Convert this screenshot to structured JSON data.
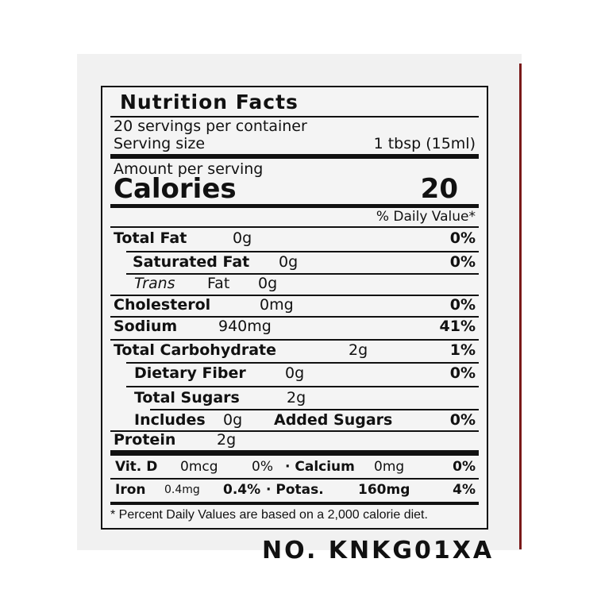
{
  "label": {
    "title": "Nutrition Facts",
    "servings": "20 servings per container",
    "serving_size_label": "Serving size",
    "serving_size_value": "1 tbsp (15ml)",
    "amount_per_serving": "Amount per serving",
    "calories_label": "Calories",
    "calories_value": "20",
    "daily_value_header": "% Daily Value*",
    "nutrients": [
      {
        "name": "Total Fat",
        "amount": "0g",
        "dv": "0%"
      },
      {
        "name": "Saturated Fat",
        "amount": "0g",
        "dv": "0%"
      },
      {
        "name_italic": "Trans",
        "name": "Fat",
        "amount": "0g"
      },
      {
        "name": "Cholesterol",
        "amount": "0mg",
        "dv": "0%"
      },
      {
        "name": "Sodium",
        "amount": "940mg",
        "dv": "41%"
      },
      {
        "name": "Total Carbohydrate",
        "amount": "2g",
        "dv": "1%"
      },
      {
        "name": "Dietary Fiber",
        "amount": "0g",
        "dv": "0%"
      },
      {
        "name": "Total Sugars",
        "amount": "2g"
      },
      {
        "name": "Includes",
        "amount": "0g",
        "suffix": "Added Sugars",
        "dv": "0%"
      },
      {
        "name": "Protein",
        "amount": "2g"
      }
    ],
    "vitamins": [
      {
        "name": "Vit. D",
        "amount": "0mcg",
        "dv": "0%",
        "name2": "· Calcium",
        "amount2": "0mg",
        "dv2": "0%"
      },
      {
        "name": "Iron",
        "amount": "0.4mg",
        "dv": "0.4%",
        "name2": "· Potas.",
        "amount2": "160mg",
        "dv2": "4%"
      }
    ],
    "footnote": "* Percent Daily Values are based on a 2,000 calorie diet."
  },
  "lot_number": "NO. KNKG01XA"
}
